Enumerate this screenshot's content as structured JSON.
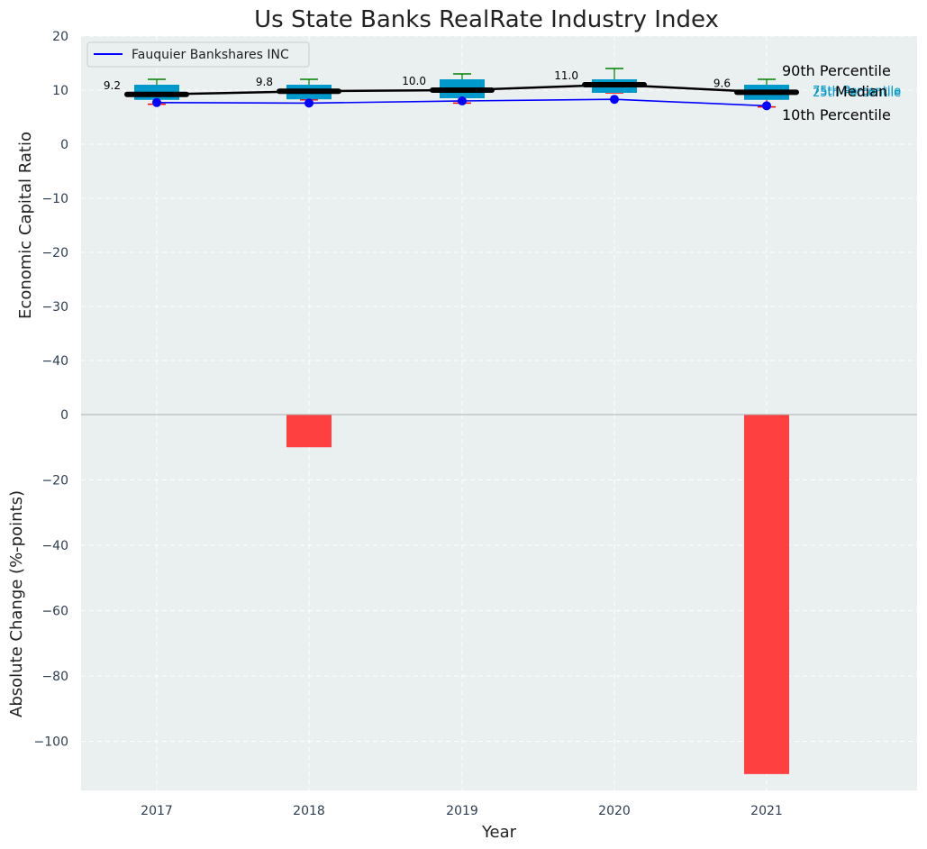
{
  "chart_data": {
    "type": "box-line-bar-combo",
    "title": "Us State Banks RealRate Industry Index",
    "xlabel": "Year",
    "categories": [
      "2017",
      "2018",
      "2019",
      "2020",
      "2021"
    ],
    "top_panel": {
      "ylabel": "Economic Capital Ratio",
      "ylim": [
        -50,
        20
      ],
      "yticks": [
        20,
        10,
        0,
        -10,
        -20,
        -30,
        -40
      ],
      "grid": true,
      "legend_position": "top-left",
      "industry_boxes": [
        {
          "year": "2017",
          "p10": 7.4,
          "q1": 8.2,
          "median": 9.2,
          "q3": 11.0,
          "p90": 12.0
        },
        {
          "year": "2018",
          "p10": 8.2,
          "q1": 8.3,
          "median": 9.8,
          "q3": 11.0,
          "p90": 12.0
        },
        {
          "year": "2019",
          "p10": 7.6,
          "q1": 8.5,
          "median": 10.0,
          "q3": 12.0,
          "p90": 13.0
        },
        {
          "year": "2020",
          "p10": 9.5,
          "q1": 9.5,
          "median": 11.0,
          "q3": 12.0,
          "p90": 14.0
        },
        {
          "year": "2021",
          "p10": 6.9,
          "q1": 8.2,
          "median": 9.6,
          "q3": 11.0,
          "p90": 12.0
        }
      ],
      "median_labels": [
        "9.2",
        "9.8",
        "10.0",
        "11.0",
        "9.6"
      ],
      "company_series": {
        "name": "Fauquier Bankshares INC",
        "values": [
          7.7,
          7.6,
          8.0,
          8.3,
          7.1
        ]
      },
      "percentile_annotations": {
        "p90": "90th Percentile",
        "q3": "75th Percentile",
        "median": "Median",
        "q1": "25th Percentile",
        "p10": "10th Percentile"
      }
    },
    "bottom_panel": {
      "ylabel": "Absolute Change (%-points)",
      "ylim": [
        -115,
        0
      ],
      "yticks": [
        0,
        -20,
        -40,
        -60,
        -80,
        -100
      ],
      "grid": true,
      "bars": [
        {
          "year": "2017",
          "value": 0
        },
        {
          "year": "2018",
          "value": -10
        },
        {
          "year": "2019",
          "value": 0
        },
        {
          "year": "2020",
          "value": 0
        },
        {
          "year": "2021",
          "value": -110
        }
      ]
    },
    "colors": {
      "panel_bg": "#eaeff0",
      "box_fill": "#0099cc",
      "median_line": "#000000",
      "company_line": "#0000ff",
      "whisker_top": "#008000",
      "whisker_bottom": "#ff0000",
      "bar_negative": "#ff4040",
      "grid": "#ffffff"
    }
  }
}
